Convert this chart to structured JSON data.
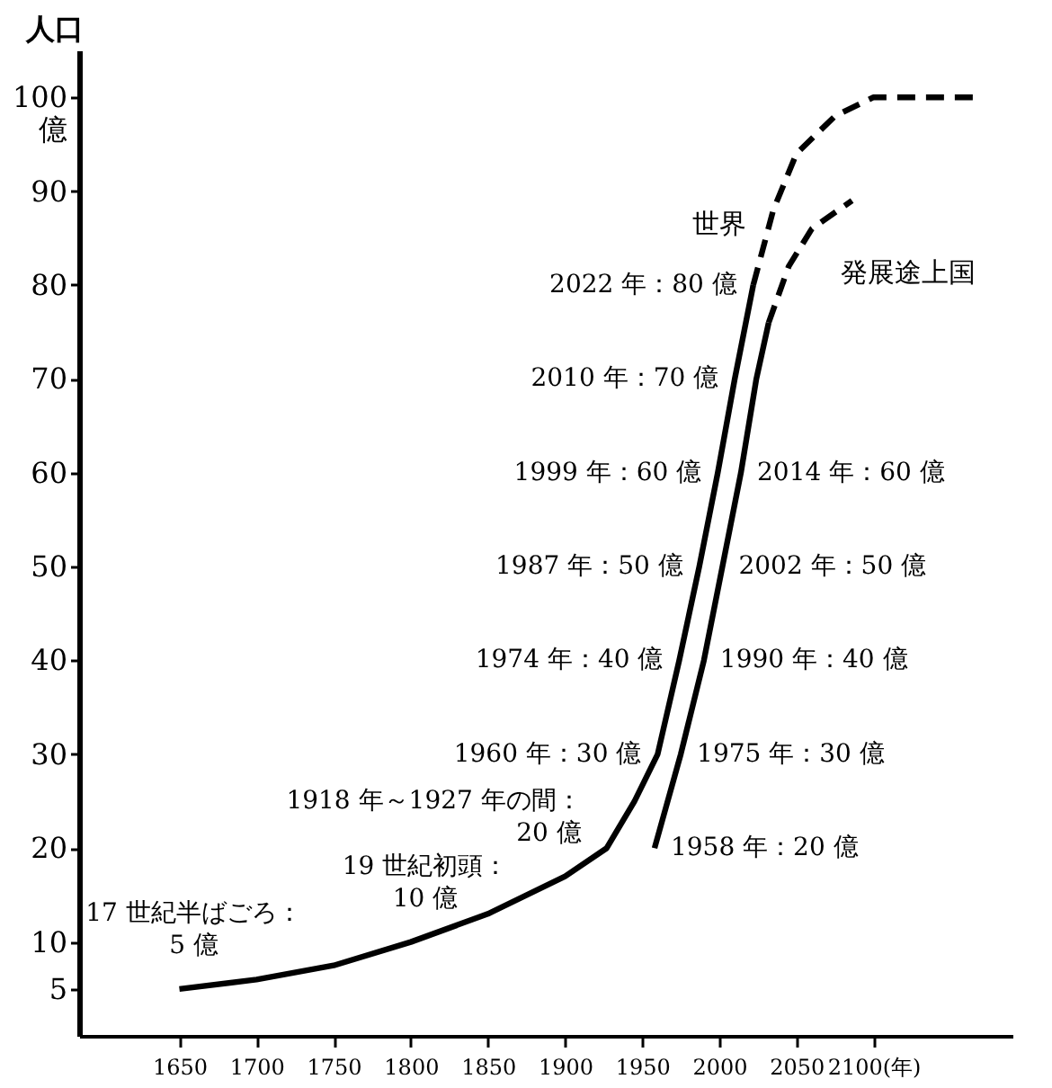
{
  "chart_data": {
    "type": "line",
    "ylabel": "人口",
    "xlim": [
      1585,
      2190
    ],
    "xticks": [
      1650,
      1700,
      1750,
      1800,
      1850,
      1900,
      1950,
      2000,
      2050,
      {
        "value": 2100,
        "label": "2100(年)"
      }
    ],
    "ylim": [
      0,
      105
    ],
    "yticks": [
      5,
      10,
      20,
      30,
      40,
      50,
      60,
      70,
      80,
      90,
      {
        "value": 100,
        "label": "100\n億"
      }
    ],
    "grid": false,
    "marker": "none",
    "series": [
      {
        "name": "世界",
        "color": "#000000",
        "line_style": "solid",
        "x": [
          1650,
          1700,
          1750,
          1800,
          1850,
          1900,
          1927,
          1945,
          1960,
          1974,
          1987,
          1999,
          2010,
          2022
        ],
        "values": [
          5,
          6,
          7.5,
          10,
          13,
          17,
          20,
          25,
          30,
          40,
          50,
          60,
          70,
          80
        ],
        "value_labels": [
          "17 世紀半ばごろ：\n5 億",
          null,
          null,
          "19 世紀初頭：\n10 億",
          null,
          null,
          "1918 年～1927 年の間：\n20 億",
          null,
          "1960 年：30 億",
          "1974 年：40 億",
          "1987 年：50 億",
          "1999 年：60 億",
          "2010 年：70 億",
          "2022 年：80 億"
        ]
      },
      {
        "color": "#000000",
        "line_style": "dashed",
        "x": [
          2022,
          2035,
          2050,
          2075,
          2100,
          2165
        ],
        "values": [
          80,
          88,
          94,
          98,
          100,
          100
        ]
      },
      {
        "name": "発展途上国",
        "color": "#000000",
        "line_style": "solid",
        "x": [
          1958,
          1975,
          1990,
          2002,
          2014,
          2024,
          2032
        ],
        "values": [
          20,
          30,
          40,
          50,
          60,
          70,
          76
        ],
        "value_labels": [
          "1958 年：20 億",
          "1975 年：30 億",
          "1990 年：40 億",
          "2002 年：50 億",
          "2014 年：60 億",
          null,
          null
        ]
      },
      {
        "color": "#000000",
        "line_style": "dashed",
        "x": [
          2032,
          2045,
          2060,
          2086
        ],
        "values": [
          76,
          82,
          86,
          89
        ]
      }
    ]
  }
}
